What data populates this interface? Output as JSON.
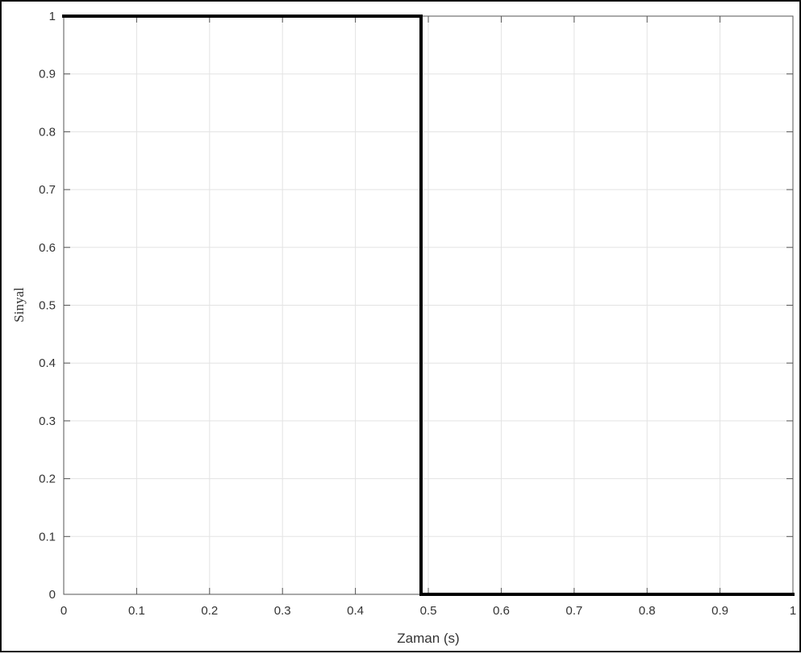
{
  "chart_data": {
    "type": "line",
    "xlabel": "Zaman (s)",
    "ylabel": "Sinyal",
    "xlim": [
      0,
      1
    ],
    "ylim": [
      0,
      1
    ],
    "grid": true,
    "xticks": [
      "0",
      "0.1",
      "0.2",
      "0.3",
      "0.4",
      "0.5",
      "0.6",
      "0.7",
      "0.8",
      "0.9",
      "1"
    ],
    "yticks": [
      "0",
      "0.1",
      "0.2",
      "0.3",
      "0.4",
      "0.5",
      "0.6",
      "0.7",
      "0.8",
      "0.9",
      "1"
    ],
    "series": [
      {
        "x": [
          0,
          0.49,
          0.49,
          1
        ],
        "y": [
          1,
          1,
          0,
          0
        ],
        "color": "#000000"
      }
    ]
  }
}
